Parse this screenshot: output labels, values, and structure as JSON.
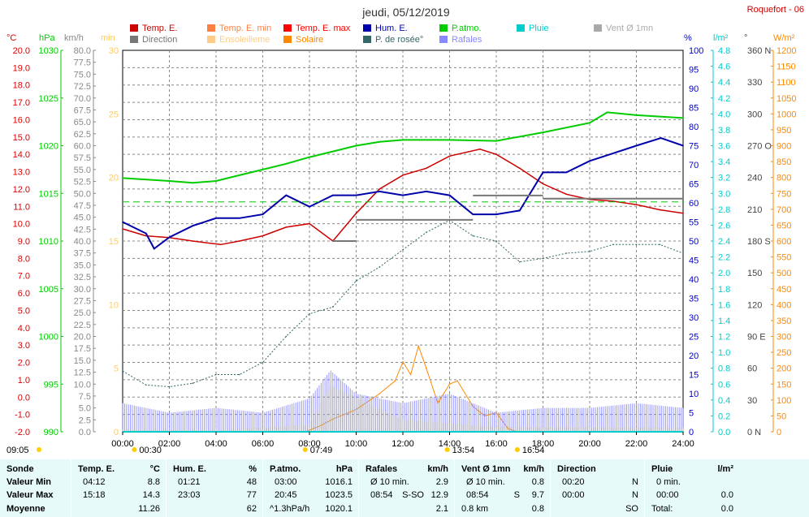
{
  "title": "jeudi, 05/12/2019",
  "station": "Roquefort - 06",
  "colors": {
    "temp": "#cc0000",
    "tempmin": "#ff8040",
    "tempmax": "#ff0000",
    "humid": "#0000aa",
    "patm": "#00cc00",
    "pluie": "#00cccc",
    "vent": "#aaaaaa",
    "direction": "#777777",
    "ensol": "#ffcc88",
    "solaire": "#ff8800",
    "dew": "#336666",
    "rafales": "#8888ff",
    "ax_temp": "#dd0000",
    "ax_hpa": "#00cc00",
    "ax_kmh": "#888888",
    "ax_min": "#ffcc66",
    "ax_pct": "#0000cc",
    "ax_lm2": "#00cccc",
    "ax_deg": "#444444",
    "ax_wm2": "#ff8800"
  },
  "legend": [
    {
      "label": "Temp. E.",
      "color": "#cc0000"
    },
    {
      "label": "Temp. E. min",
      "color": "#ff8040"
    },
    {
      "label": "Temp. E. max",
      "color": "#ff0000"
    },
    {
      "label": "Hum. E.",
      "color": "#0000aa"
    },
    {
      "label": "P.atmo.",
      "color": "#00cc00"
    },
    {
      "label": "Pluie",
      "color": "#00cccc"
    },
    {
      "label": "Vent Ø 1mn",
      "color": "#aaaaaa"
    },
    {
      "label": "Direction",
      "color": "#777777"
    },
    {
      "label": "Ensoleilleme",
      "color": "#ffcc88"
    },
    {
      "label": "Solaire",
      "color": "#ff8800"
    },
    {
      "label": "P. de rosée°",
      "color": "#336666"
    },
    {
      "label": "Rafales",
      "color": "#8888ff"
    }
  ],
  "axis_units": {
    "temp": "°C",
    "hpa": "hPa",
    "kmh": "km/h",
    "min": "min",
    "pct": "%",
    "lm2": "l/m²",
    "deg": "°",
    "wm2": "W/m²"
  },
  "axis_ticks": {
    "temp": [
      "20.0",
      "19.0",
      "18.0",
      "17.0",
      "16.0",
      "15.0",
      "14.0",
      "13.0",
      "12.0",
      "11.0",
      "10.0",
      "9.0",
      "8.0",
      "7.0",
      "6.0",
      "5.0",
      "4.0",
      "3.0",
      "2.0",
      "1.0",
      "0.0",
      "-1.0",
      "-2.0"
    ],
    "hpa": [
      "1030",
      "1025",
      "1020",
      "1015",
      "1010",
      "1005",
      "1000",
      "995",
      "990"
    ],
    "kmh": [
      "80.0",
      "77.5",
      "75.0",
      "72.5",
      "70.0",
      "67.5",
      "65.0",
      "62.5",
      "60.0",
      "57.5",
      "55.0",
      "52.5",
      "50.0",
      "47.5",
      "45.0",
      "42.5",
      "40.0",
      "37.5",
      "35.0",
      "32.5",
      "30.0",
      "27.5",
      "25.0",
      "22.5",
      "20.0",
      "17.5",
      "15.0",
      "12.5",
      "10.0",
      "7.5",
      "5.0",
      "2.5",
      "0.0"
    ],
    "min": [
      "30",
      "25",
      "20",
      "15",
      "10",
      "5",
      "0"
    ],
    "pct": [
      "100",
      "95",
      "90",
      "85",
      "80",
      "75",
      "70",
      "65",
      "60",
      "55",
      "50",
      "45",
      "40",
      "35",
      "30",
      "25",
      "20",
      "15",
      "10",
      "5",
      "0"
    ],
    "lm2": [
      "4.8",
      "4.6",
      "4.4",
      "4.2",
      "4.0",
      "3.8",
      "3.6",
      "3.4",
      "3.2",
      "3.0",
      "2.8",
      "2.6",
      "2.4",
      "2.2",
      "2.0",
      "1.8",
      "1.6",
      "1.4",
      "1.2",
      "1.0",
      "0.8",
      "0.6",
      "0.4",
      "0.2",
      "0.0"
    ],
    "deg": [
      "360 N",
      "330",
      "300",
      "270 O",
      "240",
      "210",
      "180 S",
      "150",
      "120",
      "90 E",
      "60",
      "30",
      "0 N"
    ],
    "wm2": [
      "1200",
      "1150",
      "1100",
      "1050",
      "1000",
      "950",
      "900",
      "850",
      "800",
      "750",
      "700",
      "650",
      "600",
      "550",
      "500",
      "450",
      "400",
      "350",
      "300",
      "250",
      "200",
      "150",
      "100",
      "50",
      "0"
    ]
  },
  "x_ticks": [
    "00:00",
    "02:00",
    "04:00",
    "06:00",
    "08:00",
    "10:00",
    "12:00",
    "14:00",
    "16:00",
    "18:00",
    "20:00",
    "22:00",
    "24:00"
  ],
  "sun_markers": [
    {
      "time": "09:05",
      "label": "09:05"
    },
    {
      "time": "00:30",
      "label": "00:30"
    },
    {
      "time": "07:49",
      "label": "07:49"
    },
    {
      "time": "13:54",
      "label": "13:54"
    },
    {
      "time": "16:54",
      "label": "16:54"
    }
  ],
  "chart_data": {
    "type": "line",
    "title": "jeudi, 05/12/2019",
    "x_range": [
      "00:00",
      "24:00"
    ],
    "series": [
      {
        "name": "Temp. E.",
        "unit": "°C",
        "x": [
          "00:00",
          "01:00",
          "02:00",
          "03:00",
          "04:12",
          "05:00",
          "06:00",
          "07:00",
          "08:00",
          "09:00",
          "10:00",
          "11:00",
          "12:00",
          "13:00",
          "14:00",
          "15:18",
          "16:00",
          "17:00",
          "18:00",
          "19:00",
          "20:00",
          "21:00",
          "22:00",
          "23:00",
          "24:00"
        ],
        "values": [
          9.7,
          9.3,
          9.2,
          9.0,
          8.8,
          9.0,
          9.3,
          9.8,
          10.0,
          9.0,
          10.6,
          12.0,
          12.8,
          13.2,
          13.9,
          14.3,
          14.0,
          13.2,
          12.3,
          11.7,
          11.4,
          11.3,
          11.1,
          10.8,
          10.6
        ]
      },
      {
        "name": "P.atmo.",
        "unit": "hPa",
        "x": [
          "00:00",
          "02:00",
          "03:00",
          "04:00",
          "05:00",
          "06:00",
          "07:00",
          "08:00",
          "09:00",
          "10:00",
          "11:00",
          "12:00",
          "14:00",
          "16:00",
          "18:00",
          "20:00",
          "20:45",
          "22:00",
          "24:00"
        ],
        "values": [
          1016.6,
          1016.3,
          1016.1,
          1016.3,
          1016.9,
          1017.5,
          1018.1,
          1018.8,
          1019.4,
          1020.0,
          1020.4,
          1020.6,
          1020.6,
          1020.5,
          1021.4,
          1022.4,
          1023.5,
          1023.2,
          1022.9
        ]
      },
      {
        "name": "Hum. E.",
        "unit": "%",
        "x": [
          "00:00",
          "01:00",
          "01:21",
          "02:00",
          "03:00",
          "04:00",
          "05:00",
          "06:00",
          "07:00",
          "08:00",
          "09:00",
          "10:00",
          "11:00",
          "12:00",
          "13:00",
          "14:00",
          "15:00",
          "16:00",
          "17:00",
          "18:00",
          "19:00",
          "20:00",
          "21:00",
          "22:00",
          "23:03",
          "24:00"
        ],
        "values": [
          55,
          52,
          48,
          51,
          54,
          56,
          56,
          57,
          62,
          59,
          62,
          62,
          63,
          62,
          63,
          62,
          57,
          57,
          58,
          68,
          68,
          71,
          73,
          75,
          77,
          75
        ]
      },
      {
        "name": "P. de rosée°",
        "unit": "°C",
        "x": [
          "00:00",
          "01:00",
          "02:00",
          "03:00",
          "04:00",
          "05:00",
          "06:00",
          "07:00",
          "08:00",
          "09:00",
          "10:00",
          "11:00",
          "12:00",
          "13:00",
          "14:00",
          "15:00",
          "16:00",
          "17:00",
          "18:00",
          "19:00",
          "20:00",
          "21:00",
          "22:00",
          "23:00",
          "24:00"
        ],
        "values": [
          1.5,
          0.7,
          0.6,
          0.8,
          1.3,
          1.3,
          2.0,
          3.5,
          4.8,
          5.2,
          6.7,
          7.5,
          8.5,
          9.5,
          10.2,
          9.3,
          9.0,
          7.8,
          8.0,
          8.3,
          8.4,
          8.8,
          8.8,
          8.8,
          8.3
        ]
      },
      {
        "name": "Solaire",
        "unit": "W/m²",
        "x": [
          "07:49",
          "08:30",
          "09:00",
          "10:00",
          "11:00",
          "11:40",
          "12:00",
          "12:20",
          "12:40",
          "13:00",
          "13:30",
          "14:00",
          "14:20",
          "15:00",
          "15:30",
          "16:00",
          "16:30",
          "16:54"
        ],
        "values": [
          0,
          20,
          40,
          70,
          120,
          160,
          220,
          180,
          270,
          200,
          90,
          150,
          160,
          80,
          50,
          60,
          10,
          0
        ]
      },
      {
        "name": "Rafales",
        "unit": "km/h",
        "x": [
          "00:00",
          "02:00",
          "04:00",
          "06:00",
          "08:00",
          "08:54",
          "10:00",
          "12:00",
          "14:00",
          "16:00",
          "18:00",
          "20:00",
          "22:00",
          "24:00"
        ],
        "values": [
          6,
          4,
          5,
          4,
          7,
          12.9,
          8,
          6,
          8,
          4,
          5,
          5,
          6,
          5
        ]
      },
      {
        "name": "Vent Ø 1mn",
        "unit": "km/h",
        "x": [
          "00:00",
          "04:00",
          "08:00",
          "08:54",
          "12:00",
          "16:00",
          "20:00",
          "24:00"
        ],
        "values": [
          0.5,
          0.3,
          1.5,
          9.7,
          2.5,
          1.0,
          1.0,
          0.8
        ]
      },
      {
        "name": "Direction",
        "unit": "°",
        "x": [
          "09:00",
          "10:00",
          "15:00",
          "16:00",
          "18:00",
          "24:00"
        ],
        "values": [
          180,
          200,
          223,
          223,
          220,
          220
        ]
      },
      {
        "name": "Pluie",
        "unit": "l/m²",
        "x": [
          "00:00",
          "24:00"
        ],
        "values": [
          0.0,
          0.0
        ]
      },
      {
        "name": "Temp. E. max",
        "unit": "°C",
        "x": [
          "00:00",
          "24:00"
        ],
        "values": [
          14.3,
          14.3
        ]
      },
      {
        "name": "Temp. E. min",
        "unit": "°C",
        "x": [
          "00:00",
          "24:00"
        ],
        "values": [
          8.8,
          8.8
        ]
      }
    ],
    "reference_lines": [
      {
        "name": "Temp. E. moyenne",
        "unit": "°C",
        "value": 11.26
      }
    ],
    "ylim": {
      "temp": [
        -2,
        20
      ],
      "hpa": [
        990,
        1030
      ],
      "kmh": [
        0,
        80
      ],
      "min": [
        0,
        30
      ],
      "pct": [
        0,
        100
      ],
      "lm2": [
        0,
        5
      ],
      "deg": [
        0,
        360
      ],
      "wm2": [
        0,
        1200
      ]
    },
    "grid": true
  },
  "summary": {
    "columns": [
      {
        "name": "Sonde",
        "unit": "",
        "min_time": "",
        "min_val": "",
        "max_time": "",
        "max_val": "",
        "avg_note": "",
        "avg_val": ""
      },
      {
        "name": "Temp. E.",
        "unit": "°C",
        "min_time": "04:12",
        "min_val": "8.8",
        "max_time": "15:18",
        "max_val": "14.3",
        "avg_note": "",
        "avg_val": "11.26"
      },
      {
        "name": "Hum. E.",
        "unit": "%",
        "min_time": "01:21",
        "min_val": "48",
        "max_time": "23:03",
        "max_val": "77",
        "avg_note": "",
        "avg_val": "62"
      },
      {
        "name": "P.atmo.",
        "unit": "hPa",
        "min_time": "03:00",
        "min_val": "1016.1",
        "max_time": "20:45",
        "max_val": "1023.5",
        "avg_note": "^1.3hPa/h",
        "avg_val": "1020.1"
      },
      {
        "name": "Rafales",
        "unit": "km/h",
        "min_time": "Ø 10 min.",
        "min_val": "2.9",
        "max_time": "08:54",
        "max_dir": "S-SO",
        "max_val": "12.9",
        "avg_note": "",
        "avg_val": "2.1"
      },
      {
        "name": "Vent Ø 1mn",
        "unit": "km/h",
        "min_time": "Ø 10 min.",
        "min_val": "0.8",
        "max_time": "08:54",
        "max_dir": "S",
        "max_val": "9.7",
        "avg_note": "0.8 km",
        "avg_val": "0.8"
      },
      {
        "name": "Direction",
        "unit": "",
        "min_time": "00:20",
        "min_val": "N",
        "max_time": "00:00",
        "max_val": "N",
        "avg_note": "",
        "avg_val": "SO"
      },
      {
        "name": "Pluie",
        "unit": "l/m²",
        "min_time": "0 min.",
        "min_val": "",
        "max_time": "00:00",
        "max_val": "0.0",
        "avg_note": "Total:",
        "avg_val": "0.0"
      }
    ],
    "row_labels": {
      "min": "Valeur Min",
      "max": "Valeur Max",
      "avg": "Moyenne"
    }
  }
}
